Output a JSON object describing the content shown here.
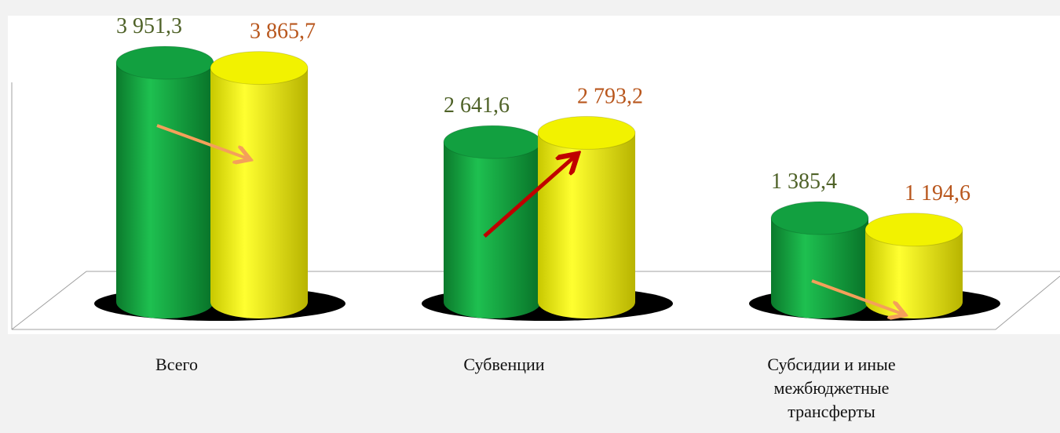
{
  "chart_data": {
    "type": "bar3d",
    "categories": [
      "Всего",
      "Субвенции",
      "Субсидии и иные межбюджетные трансферты"
    ],
    "series": [
      {
        "color": "#12a040",
        "label_color": "#4f6228",
        "values": [
          3951.3,
          2641.6,
          1385.4
        ],
        "value_labels": [
          "3 951,3",
          "2 641,6",
          "1 385,4"
        ]
      },
      {
        "color": "#f2f200",
        "label_color": "#b8561c",
        "values": [
          3865.7,
          2793.2,
          1194.6
        ],
        "value_labels": [
          "3 865,7",
          "2 793,2",
          "1 194,6"
        ]
      }
    ]
  }
}
